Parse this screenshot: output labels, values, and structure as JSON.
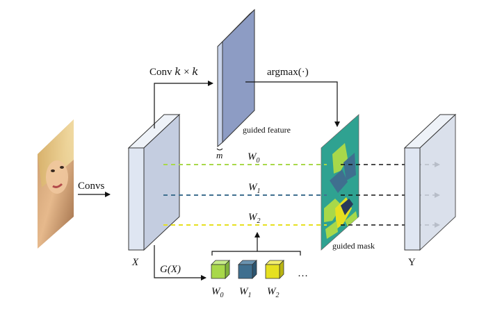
{
  "labels": {
    "conv_kxk": "Conv 𝑘 × 𝑘",
    "argmax": "argmax(·)",
    "guided_feature": "guided feature",
    "m": "m",
    "convs": "Convs",
    "x": "X",
    "y": "Y",
    "gx": "G(X)",
    "guided_mask": "guided mask",
    "ellipsis": "…",
    "w0_line": "W",
    "w0_sub": "0",
    "w1_line": "W",
    "w1_sub": "1",
    "w2_line": "W",
    "w2_sub": "2",
    "k0": "W",
    "k0_sub": "0",
    "k1": "W",
    "k1_sub": "1",
    "k2": "W",
    "k2_sub": "2"
  },
  "colors": {
    "w0": "#a8d84a",
    "w1": "#3f6f8f",
    "w2": "#e6e020",
    "block_face": "#dfe6f2",
    "block_side": "#c4cde0",
    "block_top": "#eef2f8",
    "guided_feature": "#8d9cc4",
    "mask_bg": "#2fa291"
  },
  "icons": {
    "face_image": "face-photo"
  }
}
